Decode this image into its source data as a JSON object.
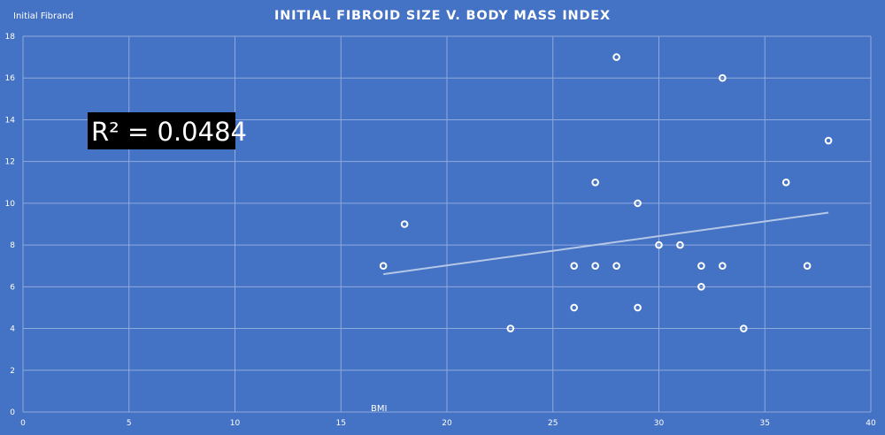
{
  "chart_data": {
    "type": "scatter",
    "title": "INITIAL FIBROID SIZE V. BODY MASS INDEX",
    "xlabel": "BMI",
    "ylabel": "Initial Fibrand",
    "xlim": [
      0,
      40
    ],
    "ylim": [
      0,
      18
    ],
    "x_ticks": [
      0,
      5,
      10,
      15,
      20,
      25,
      30,
      35,
      40
    ],
    "y_ticks": [
      0,
      2,
      4,
      6,
      8,
      10,
      12,
      14,
      16,
      18
    ],
    "grid": true,
    "series": [
      {
        "points": [
          {
            "x": 17,
            "y": 7
          },
          {
            "x": 18,
            "y": 9
          },
          {
            "x": 23,
            "y": 4
          },
          {
            "x": 26,
            "y": 7
          },
          {
            "x": 26,
            "y": 5
          },
          {
            "x": 27,
            "y": 11
          },
          {
            "x": 27,
            "y": 7
          },
          {
            "x": 28,
            "y": 17
          },
          {
            "x": 28,
            "y": 7
          },
          {
            "x": 29,
            "y": 10
          },
          {
            "x": 29,
            "y": 5
          },
          {
            "x": 30,
            "y": 8
          },
          {
            "x": 31,
            "y": 8
          },
          {
            "x": 32,
            "y": 7
          },
          {
            "x": 32,
            "y": 6
          },
          {
            "x": 33,
            "y": 16
          },
          {
            "x": 33,
            "y": 7
          },
          {
            "x": 34,
            "y": 4
          },
          {
            "x": 36,
            "y": 11
          },
          {
            "x": 37,
            "y": 7
          },
          {
            "x": 38,
            "y": 13
          }
        ]
      }
    ],
    "trendline": {
      "x_start": 17,
      "y_start": 6.6,
      "x_end": 38,
      "y_end": 9.55
    },
    "annotation": {
      "text": "R² = 0.0484"
    }
  }
}
